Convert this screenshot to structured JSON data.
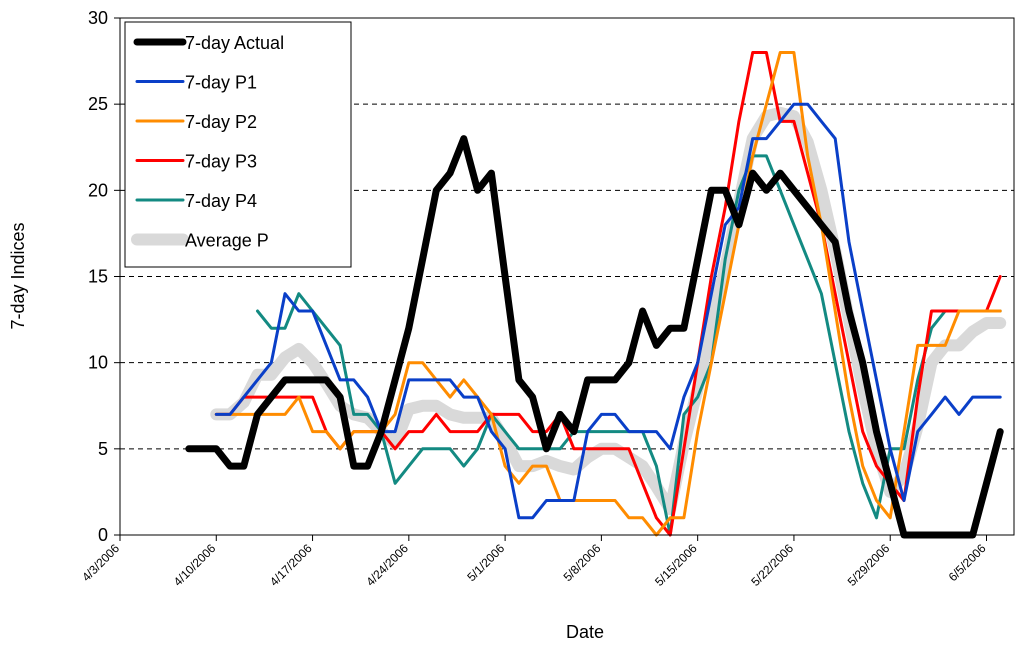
{
  "chart_data": {
    "type": "line",
    "xlabel": "Date",
    "ylabel": "7-day Indices",
    "xlim": [
      "4/3/2006",
      "6/7/2006"
    ],
    "xticks": [
      "4/3/2006",
      "4/10/2006",
      "4/17/2006",
      "4/24/2006",
      "5/1/2006",
      "5/8/2006",
      "5/15/2006",
      "5/22/2006",
      "5/29/2006",
      "6/5/2006"
    ],
    "ylim": [
      0,
      30
    ],
    "yticks": [
      0,
      5,
      10,
      15,
      20,
      25,
      30
    ],
    "grid": true,
    "legend": "upper left",
    "x": [
      "4/8/2006",
      "4/9/2006",
      "4/10/2006",
      "4/11/2006",
      "4/12/2006",
      "4/13/2006",
      "4/14/2006",
      "4/15/2006",
      "4/16/2006",
      "4/17/2006",
      "4/18/2006",
      "4/19/2006",
      "4/20/2006",
      "4/21/2006",
      "4/22/2006",
      "4/23/2006",
      "4/24/2006",
      "4/25/2006",
      "4/26/2006",
      "4/27/2006",
      "4/28/2006",
      "4/29/2006",
      "4/30/2006",
      "5/1/2006",
      "5/2/2006",
      "5/3/2006",
      "5/4/2006",
      "5/5/2006",
      "5/6/2006",
      "5/7/2006",
      "5/8/2006",
      "5/9/2006",
      "5/10/2006",
      "5/11/2006",
      "5/12/2006",
      "5/13/2006",
      "5/14/2006",
      "5/15/2006",
      "5/16/2006",
      "5/17/2006",
      "5/18/2006",
      "5/19/2006",
      "5/20/2006",
      "5/21/2006",
      "5/22/2006",
      "5/23/2006",
      "5/24/2006",
      "5/25/2006",
      "5/26/2006",
      "5/27/2006",
      "5/28/2006",
      "5/29/2006",
      "5/30/2006",
      "5/31/2006",
      "6/1/2006",
      "6/2/2006",
      "6/3/2006",
      "6/4/2006",
      "6/5/2006",
      "6/6/2006"
    ],
    "series": [
      {
        "name": "7-day Actual",
        "color": "#000000",
        "width": 7,
        "values": [
          5,
          5,
          5,
          4,
          4,
          7,
          8,
          9,
          9,
          9,
          9,
          8,
          4,
          4,
          6,
          9,
          12,
          16,
          20,
          21,
          23,
          20,
          21,
          15,
          9,
          8,
          5,
          7,
          6,
          9,
          9,
          9,
          10,
          13,
          11,
          12,
          12,
          16,
          20,
          20,
          18,
          21,
          20,
          21,
          20,
          19,
          18,
          17,
          13,
          10,
          6,
          3,
          0,
          0,
          0,
          0,
          0,
          0,
          3,
          6
        ]
      },
      {
        "name": "7-day P1",
        "color": "#0a3fc8",
        "width": 3,
        "values": [
          null,
          null,
          7,
          7,
          8,
          9,
          10,
          14,
          13,
          13,
          11,
          9,
          9,
          8,
          6,
          6,
          9,
          9,
          9,
          9,
          8,
          8,
          6,
          5,
          1,
          1,
          2,
          2,
          2,
          6,
          7,
          7,
          6,
          6,
          6,
          5,
          8,
          10,
          14,
          18,
          19,
          23,
          23,
          24,
          25,
          25,
          24,
          23,
          17,
          13,
          9,
          5,
          2,
          6,
          7,
          8,
          7,
          8,
          8,
          8
        ]
      },
      {
        "name": "7-day P2",
        "color": "#ff8c00",
        "width": 3,
        "values": [
          null,
          null,
          7,
          7,
          7,
          7,
          7,
          7,
          8,
          6,
          6,
          5,
          6,
          6,
          6,
          7,
          10,
          10,
          9,
          8,
          9,
          8,
          7,
          4,
          3,
          4,
          4,
          2,
          2,
          2,
          2,
          2,
          1,
          1,
          0,
          1,
          1,
          6,
          10,
          14,
          18,
          22,
          25,
          28,
          28,
          22,
          18,
          13,
          8,
          4,
          2,
          1,
          6,
          11,
          11,
          11,
          13,
          13,
          13,
          13
        ]
      },
      {
        "name": "7-day P3",
        "color": "#ff0000",
        "width": 3,
        "values": [
          null,
          null,
          7,
          7,
          8,
          8,
          8,
          8,
          8,
          8,
          6,
          5,
          6,
          6,
          6,
          5,
          6,
          6,
          7,
          6,
          6,
          6,
          7,
          7,
          7,
          6,
          6,
          7,
          5,
          5,
          5,
          5,
          5,
          3,
          1,
          0,
          5,
          10,
          15,
          19,
          24,
          28,
          28,
          24,
          24,
          21,
          18,
          14,
          10,
          6,
          4,
          3,
          2,
          8,
          13,
          13,
          13,
          13,
          13,
          15
        ]
      },
      {
        "name": "7-day P4",
        "color": "#138a82",
        "width": 3,
        "values": [
          null,
          null,
          null,
          null,
          null,
          13,
          12,
          12,
          14,
          13,
          12,
          11,
          7,
          7,
          6,
          3,
          4,
          5,
          5,
          5,
          4,
          5,
          7,
          6,
          5,
          5,
          5,
          5,
          6,
          6,
          6,
          6,
          6,
          6,
          4,
          0,
          7,
          8,
          10,
          16,
          20,
          22,
          22,
          20,
          18,
          16,
          14,
          10,
          6,
          3,
          1,
          5,
          5,
          9,
          12,
          13,
          13,
          13,
          13,
          13
        ]
      },
      {
        "name": "Average P",
        "color": "#d9d9d9",
        "width": 12,
        "values": [
          null,
          null,
          7,
          7,
          7.7,
          9.3,
          9.3,
          10.3,
          10.8,
          10,
          8.8,
          7.5,
          7,
          6.8,
          6,
          5.3,
          7.3,
          7.5,
          7.5,
          7,
          6.8,
          6.8,
          6.8,
          5.5,
          4,
          4,
          4.3,
          4,
          3.8,
          4.5,
          5,
          5,
          4.5,
          4,
          2.8,
          1.5,
          5.3,
          8.5,
          12.3,
          15.5,
          19.3,
          23,
          24.3,
          24.5,
          24.3,
          22.8,
          20,
          16.5,
          12.5,
          8.5,
          5,
          2.5,
          3.5,
          6.3,
          10,
          11,
          11,
          11.8,
          12.3,
          12.3
        ]
      }
    ]
  }
}
